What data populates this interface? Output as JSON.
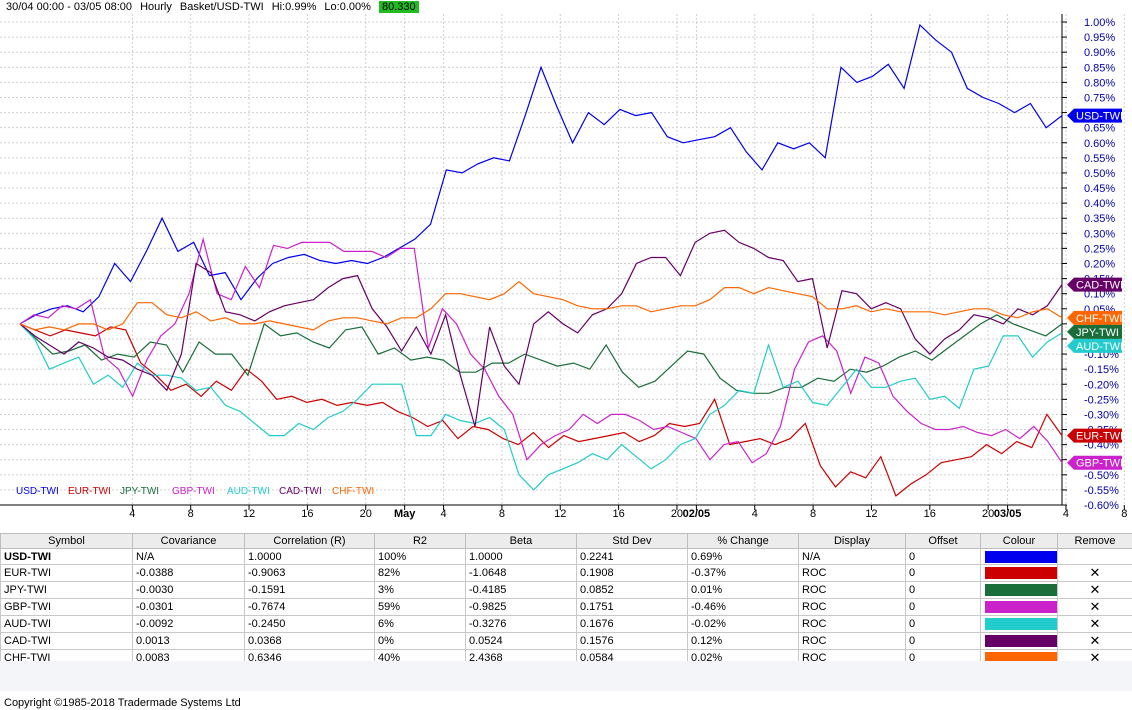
{
  "header": {
    "date_range": "30/04 00:00 - 03/05 08:00",
    "interval": "Hourly",
    "basket": "Basket/USD-TWI",
    "hi": "Hi:0.99%",
    "lo": "Lo:0.00%",
    "last_value": "80.330"
  },
  "chart_data": {
    "type": "line",
    "y_unit": "%",
    "ylim": [
      -0.6,
      1.02
    ],
    "y_ticks": [
      "1.00%",
      "0.95%",
      "0.90%",
      "0.85%",
      "0.80%",
      "0.75%",
      "0.70%",
      "0.65%",
      "0.60%",
      "0.55%",
      "0.50%",
      "0.45%",
      "0.40%",
      "0.35%",
      "0.30%",
      "0.25%",
      "0.20%",
      "0.15%",
      "0.10%",
      "0.05%",
      "0.00%",
      "-0.05%",
      "-0.10%",
      "-0.15%",
      "-0.20%",
      "-0.25%",
      "-0.30%",
      "-0.35%",
      "-0.40%",
      "-0.45%",
      "-0.50%",
      "-0.55%",
      "-0.60%"
    ],
    "x_ticks": [
      {
        "i": 3,
        "label": "4",
        "bold": false
      },
      {
        "i": 6,
        "label": "8",
        "bold": false
      },
      {
        "i": 9,
        "label": "12",
        "bold": false
      },
      {
        "i": 12,
        "label": "16",
        "bold": false
      },
      {
        "i": 15,
        "label": "20",
        "bold": false
      },
      {
        "i": 17,
        "label": "May",
        "bold": true
      },
      {
        "i": 19,
        "label": "4",
        "bold": false
      },
      {
        "i": 22,
        "label": "8",
        "bold": false
      },
      {
        "i": 25,
        "label": "12",
        "bold": false
      },
      {
        "i": 28,
        "label": "16",
        "bold": false
      },
      {
        "i": 31,
        "label": "20",
        "bold": false
      },
      {
        "i": 32,
        "label": "02/05",
        "bold": true
      },
      {
        "i": 35,
        "label": "4",
        "bold": false
      },
      {
        "i": 38,
        "label": "8",
        "bold": false
      },
      {
        "i": 41,
        "label": "12",
        "bold": false
      },
      {
        "i": 44,
        "label": "16",
        "bold": false
      },
      {
        "i": 47,
        "label": "20",
        "bold": false
      },
      {
        "i": 48,
        "label": "03/05",
        "bold": true
      },
      {
        "i": 51,
        "label": "4",
        "bold": false
      },
      {
        "i": 54,
        "label": "8",
        "bold": false
      }
    ],
    "series": [
      {
        "name": "USD-TWI",
        "color": "#0000ee",
        "values": [
          0.0,
          0.03,
          0.05,
          0.06,
          0.04,
          0.09,
          0.2,
          0.14,
          0.24,
          0.35,
          0.24,
          0.27,
          0.16,
          0.17,
          0.08,
          0.15,
          0.2,
          0.22,
          0.23,
          0.21,
          0.2,
          0.21,
          0.2,
          0.22,
          0.25,
          0.28,
          0.33,
          0.51,
          0.5,
          0.53,
          0.55,
          0.54,
          0.69,
          0.85,
          0.72,
          0.6,
          0.7,
          0.66,
          0.71,
          0.69,
          0.7,
          0.62,
          0.6,
          0.61,
          0.62,
          0.65,
          0.57,
          0.51,
          0.6,
          0.58,
          0.6,
          0.55,
          0.85,
          0.8,
          0.82,
          0.86,
          0.78,
          0.99,
          0.94,
          0.9,
          0.78,
          0.75,
          0.73,
          0.7,
          0.73,
          0.65,
          0.69
        ]
      },
      {
        "name": "EUR-TWI",
        "color": "#cc0000",
        "values": [
          0.0,
          -0.02,
          -0.04,
          -0.02,
          -0.03,
          -0.04,
          -0.01,
          -0.02,
          -0.13,
          -0.17,
          -0.22,
          -0.2,
          -0.24,
          -0.19,
          -0.22,
          -0.15,
          -0.19,
          -0.25,
          -0.24,
          -0.26,
          -0.25,
          -0.27,
          -0.26,
          -0.27,
          -0.26,
          -0.29,
          -0.31,
          -0.34,
          -0.32,
          -0.38,
          -0.34,
          -0.35,
          -0.38,
          -0.4,
          -0.36,
          -0.41,
          -0.37,
          -0.39,
          -0.38,
          -0.37,
          -0.36,
          -0.39,
          -0.37,
          -0.33,
          -0.34,
          -0.33,
          -0.25,
          -0.4,
          -0.39,
          -0.38,
          -0.4,
          -0.38,
          -0.33,
          -0.47,
          -0.54,
          -0.49,
          -0.51,
          -0.44,
          -0.57,
          -0.53,
          -0.5,
          -0.46,
          -0.45,
          -0.44,
          -0.4,
          -0.43,
          -0.39,
          -0.41,
          -0.3,
          -0.37
        ]
      },
      {
        "name": "JPY-TWI",
        "color": "#1a6e3a",
        "values": [
          0.0,
          -0.05,
          -0.1,
          -0.09,
          -0.07,
          -0.12,
          -0.1,
          -0.11,
          -0.06,
          -0.07,
          -0.16,
          -0.06,
          -0.1,
          -0.1,
          -0.17,
          0.0,
          -0.04,
          -0.03,
          -0.06,
          -0.08,
          -0.02,
          -0.01,
          -0.1,
          -0.08,
          -0.12,
          -0.11,
          -0.12,
          -0.16,
          -0.16,
          -0.13,
          -0.13,
          -0.1,
          -0.12,
          -0.14,
          -0.13,
          -0.15,
          -0.07,
          -0.16,
          -0.21,
          -0.19,
          -0.14,
          -0.09,
          -0.1,
          -0.18,
          -0.22,
          -0.23,
          -0.23,
          -0.21,
          -0.21,
          -0.18,
          -0.19,
          -0.15,
          -0.16,
          -0.14,
          -0.11,
          -0.09,
          -0.12,
          -0.08,
          -0.04,
          0.0,
          0.03,
          0.0,
          -0.02,
          -0.04,
          0.0
        ]
      },
      {
        "name": "GBP-TWI",
        "color": "#cc22cc",
        "values": [
          0.0,
          0.03,
          0.02,
          0.06,
          0.05,
          0.08,
          -0.11,
          -0.15,
          -0.24,
          -0.12,
          -0.04,
          0.0,
          0.1,
          0.28,
          0.1,
          0.08,
          0.19,
          0.12,
          0.26,
          0.25,
          0.27,
          0.27,
          0.27,
          0.24,
          0.24,
          0.24,
          0.22,
          0.25,
          0.25,
          -0.08,
          0.05,
          0.0,
          -0.1,
          -0.15,
          -0.24,
          -0.3,
          -0.45,
          -0.4,
          -0.37,
          -0.35,
          -0.3,
          -0.33,
          -0.3,
          -0.3,
          -0.32,
          -0.35,
          -0.34,
          -0.36,
          -0.38,
          -0.45,
          -0.4,
          -0.39,
          -0.46,
          -0.43,
          -0.34,
          -0.15,
          -0.06,
          -0.04,
          -0.09,
          -0.23,
          -0.11,
          -0.13,
          -0.24,
          -0.29,
          -0.33,
          -0.35,
          -0.35,
          -0.34,
          -0.36,
          -0.37,
          -0.35,
          -0.38,
          -0.34,
          -0.39,
          -0.46
        ]
      },
      {
        "name": "AUD-TWI",
        "color": "#22cccc",
        "values": [
          0.0,
          -0.05,
          -0.15,
          -0.13,
          -0.11,
          -0.2,
          -0.17,
          -0.21,
          -0.13,
          -0.17,
          -0.17,
          -0.18,
          -0.22,
          -0.21,
          -0.27,
          -0.29,
          -0.33,
          -0.37,
          -0.37,
          -0.33,
          -0.35,
          -0.31,
          -0.29,
          -0.25,
          -0.2,
          -0.2,
          -0.2,
          -0.37,
          -0.37,
          -0.3,
          -0.32,
          -0.33,
          -0.31,
          -0.35,
          -0.5,
          -0.55,
          -0.5,
          -0.48,
          -0.46,
          -0.43,
          -0.45,
          -0.4,
          -0.44,
          -0.48,
          -0.45,
          -0.4,
          -0.38,
          -0.3,
          -0.27,
          -0.22,
          -0.23,
          -0.07,
          -0.21,
          -0.19,
          -0.26,
          -0.27,
          -0.21,
          -0.15,
          -0.21,
          -0.21,
          -0.19,
          -0.18,
          -0.25,
          -0.24,
          -0.28,
          -0.15,
          -0.14,
          -0.04,
          -0.04,
          -0.11,
          -0.06,
          -0.03
        ]
      },
      {
        "name": "CAD-TWI",
        "color": "#660066",
        "values": [
          0.0,
          -0.04,
          -0.07,
          -0.1,
          -0.06,
          -0.08,
          -0.11,
          -0.12,
          -0.15,
          -0.17,
          -0.22,
          -0.1,
          0.2,
          0.17,
          0.04,
          0.03,
          0.01,
          0.04,
          0.06,
          0.07,
          0.08,
          0.12,
          0.15,
          0.16,
          0.05,
          -0.01,
          -0.09,
          -0.01,
          -0.1,
          0.03,
          -0.17,
          -0.34,
          -0.01,
          -0.14,
          -0.2,
          0.0,
          0.04,
          0.0,
          -0.03,
          0.03,
          0.05,
          0.1,
          0.2,
          0.22,
          0.22,
          0.16,
          0.27,
          0.3,
          0.31,
          0.27,
          0.25,
          0.22,
          0.21,
          0.14,
          0.15,
          -0.08,
          0.11,
          0.1,
          0.05,
          0.07,
          0.05,
          -0.05,
          -0.1,
          -0.05,
          -0.02,
          0.03,
          0.02,
          0.0,
          0.05,
          0.03,
          0.06,
          0.13
        ]
      },
      {
        "name": "CHF-TWI",
        "color": "#ff6600",
        "values": [
          0.0,
          -0.02,
          -0.01,
          -0.02,
          0.0,
          0.0,
          -0.02,
          0.0,
          0.07,
          0.07,
          0.03,
          0.02,
          0.04,
          0.01,
          0.02,
          0.0,
          0.0,
          0.01,
          0.0,
          -0.01,
          -0.02,
          0.01,
          0.02,
          0.02,
          0.01,
          0.0,
          0.02,
          0.02,
          0.05,
          0.1,
          0.1,
          0.09,
          0.08,
          0.1,
          0.14,
          0.1,
          0.09,
          0.08,
          0.06,
          0.05,
          0.05,
          0.06,
          0.06,
          0.04,
          0.05,
          0.06,
          0.06,
          0.08,
          0.12,
          0.12,
          0.1,
          0.12,
          0.11,
          0.1,
          0.09,
          0.05,
          0.05,
          0.06,
          0.04,
          0.05,
          0.04,
          0.04,
          0.04,
          0.03,
          0.04,
          0.05,
          0.05,
          0.03,
          0.02,
          0.04,
          0.05,
          0.02
        ]
      }
    ]
  },
  "table": {
    "headers": [
      "Symbol",
      "Covariance",
      "Correlation (R)",
      "R2",
      "Beta",
      "Std Dev",
      "% Change",
      "Display",
      "Offset",
      "Colour",
      "Remove"
    ],
    "rows": [
      {
        "symbol": "USD-TWI",
        "cov": "N/A",
        "corr": "1.0000",
        "r2": "100%",
        "beta": "1.0000",
        "std": "0.2241",
        "chg": "0.69%",
        "display": "N/A",
        "offset": "0",
        "colour": "#0000ee",
        "remove": ""
      },
      {
        "symbol": "EUR-TWI",
        "cov": "-0.0388",
        "corr": "-0.9063",
        "r2": "82%",
        "beta": "-1.0648",
        "std": "0.1908",
        "chg": "-0.37%",
        "display": "ROC",
        "offset": "0",
        "colour": "#cc0000",
        "remove": "✕"
      },
      {
        "symbol": "JPY-TWI",
        "cov": "-0.0030",
        "corr": "-0.1591",
        "r2": "3%",
        "beta": "-0.4185",
        "std": "0.0852",
        "chg": "0.01%",
        "display": "ROC",
        "offset": "0",
        "colour": "#1a6e3a",
        "remove": "✕"
      },
      {
        "symbol": "GBP-TWI",
        "cov": "-0.0301",
        "corr": "-0.7674",
        "r2": "59%",
        "beta": "-0.9825",
        "std": "0.1751",
        "chg": "-0.46%",
        "display": "ROC",
        "offset": "0",
        "colour": "#cc22cc",
        "remove": "✕"
      },
      {
        "symbol": "AUD-TWI",
        "cov": "-0.0092",
        "corr": "-0.2450",
        "r2": "6%",
        "beta": "-0.3276",
        "std": "0.1676",
        "chg": "-0.02%",
        "display": "ROC",
        "offset": "0",
        "colour": "#22cccc",
        "remove": "✕"
      },
      {
        "symbol": "CAD-TWI",
        "cov": "0.0013",
        "corr": "0.0368",
        "r2": "0%",
        "beta": "0.0524",
        "std": "0.1576",
        "chg": "0.12%",
        "display": "ROC",
        "offset": "0",
        "colour": "#660066",
        "remove": "✕"
      },
      {
        "symbol": "CHF-TWI",
        "cov": "0.0083",
        "corr": "0.6346",
        "r2": "40%",
        "beta": "2.4368",
        "std": "0.0584",
        "chg": "0.02%",
        "display": "ROC",
        "offset": "0",
        "colour": "#ff6600",
        "remove": "✕"
      }
    ]
  },
  "footer": {
    "copyright": "Copyright ©1985-2018 Tradermade Systems Ltd"
  }
}
